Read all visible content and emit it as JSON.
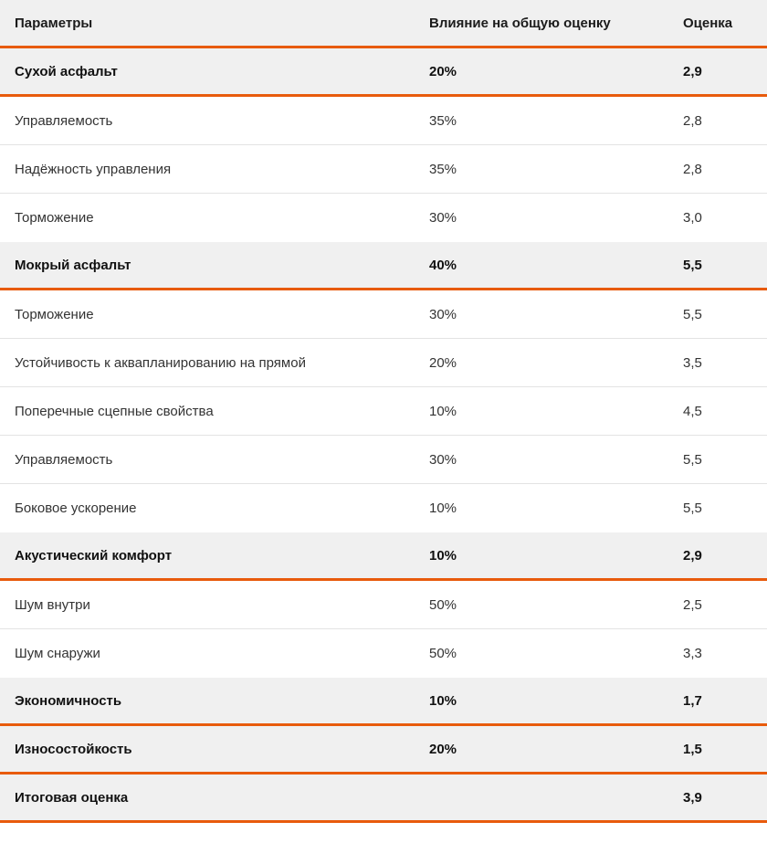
{
  "header": {
    "col1": "Параметры",
    "col2": "Влияние на общую оценку",
    "col3": "Оценка"
  },
  "rows": [
    {
      "type": "group",
      "name": "Сухой асфальт",
      "weight": "20%",
      "score": "2,9"
    },
    {
      "type": "sub",
      "name": "Управляемость",
      "weight": "35%",
      "score": "2,8"
    },
    {
      "type": "sub",
      "name": "Надёжность управления",
      "weight": "35%",
      "score": "2,8"
    },
    {
      "type": "sub",
      "name": "Торможение",
      "weight": "30%",
      "score": "3,0"
    },
    {
      "type": "group",
      "name": "Мокрый асфальт",
      "weight": "40%",
      "score": "5,5"
    },
    {
      "type": "sub",
      "name": "Торможение",
      "weight": "30%",
      "score": "5,5"
    },
    {
      "type": "sub",
      "name": "Устойчивость к аквапланированию на прямой",
      "weight": "20%",
      "score": "3,5"
    },
    {
      "type": "sub",
      "name": "Поперечные сцепные свойства",
      "weight": "10%",
      "score": "4,5"
    },
    {
      "type": "sub",
      "name": "Управляемость",
      "weight": "30%",
      "score": "5,5"
    },
    {
      "type": "sub",
      "name": "Боковое ускорение",
      "weight": "10%",
      "score": "5,5"
    },
    {
      "type": "group",
      "name": "Акустический комфорт",
      "weight": "10%",
      "score": "2,9"
    },
    {
      "type": "sub",
      "name": "Шум внутри",
      "weight": "50%",
      "score": "2,5"
    },
    {
      "type": "sub",
      "name": "Шум снаружи",
      "weight": "50%",
      "score": "3,3"
    },
    {
      "type": "group",
      "name": "Экономичность",
      "weight": "10%",
      "score": "1,7"
    },
    {
      "type": "group",
      "name": "Износостойкость",
      "weight": "20%",
      "score": "1,5"
    },
    {
      "type": "group",
      "name": "Итоговая оценка",
      "weight": "",
      "score": "3,9"
    }
  ],
  "colors": {
    "accent": "#e85b0c",
    "group_bg": "#f0f0f0",
    "divider": "#e3e3e3"
  }
}
